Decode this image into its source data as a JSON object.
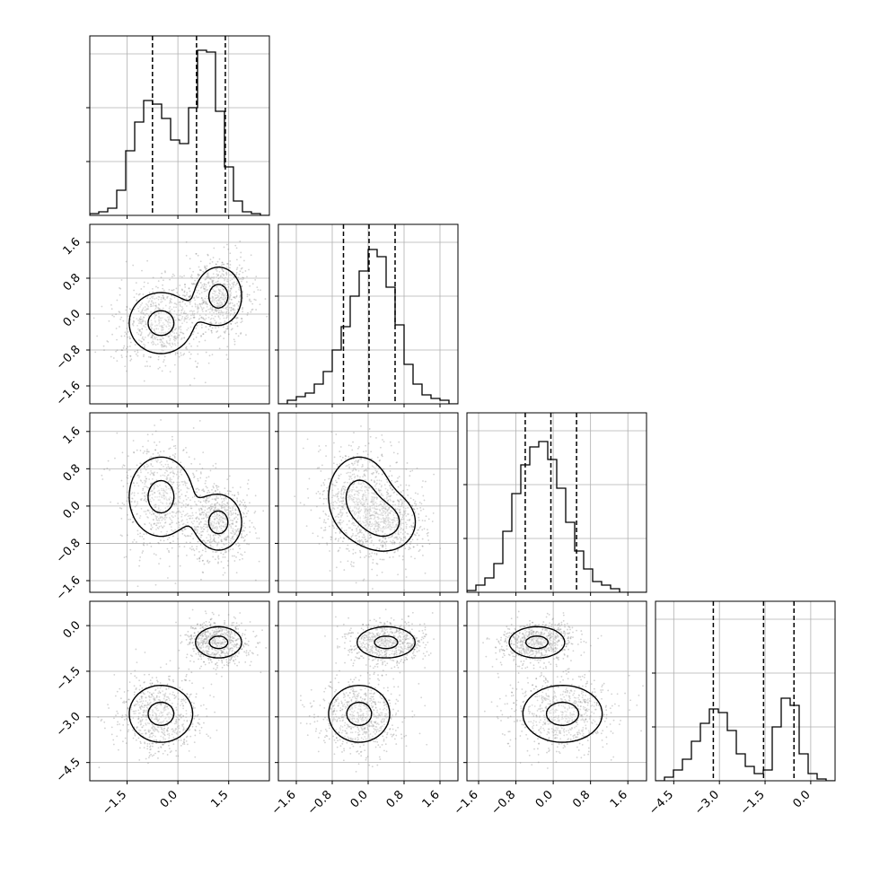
{
  "chart_data": {
    "type": "corner",
    "title": "",
    "grid": true,
    "variables": [
      {
        "name": "",
        "range": [
          -2.6,
          2.7
        ],
        "ticks": [
          -1.5,
          0.0,
          1.5
        ],
        "tick_labels": [
          "−1.5",
          "0.0",
          "1.5"
        ],
        "quantiles": [
          -0.75,
          0.55,
          1.4
        ]
      },
      {
        "name": "",
        "range": [
          -2.0,
          2.0
        ],
        "ticks": [
          -1.6,
          -0.8,
          0.0,
          0.8,
          1.6
        ],
        "tick_labels": [
          "−1.6",
          "−0.8",
          "0.0",
          "0.8",
          "1.6"
        ],
        "quantiles": [
          -0.55,
          0.02,
          0.6
        ]
      },
      {
        "name": "",
        "range": [
          -1.85,
          2.0
        ],
        "ticks": [
          -1.6,
          -0.8,
          0.0,
          0.8,
          1.6
        ],
        "tick_labels": [
          "−1.6",
          "−0.8",
          "0.0",
          "0.8",
          "1.6"
        ],
        "quantiles": [
          -0.6,
          -0.05,
          0.5
        ]
      },
      {
        "name": "",
        "range": [
          -5.1,
          0.8
        ],
        "ticks": [
          -4.5,
          -3.0,
          -1.5,
          0.0
        ],
        "tick_labels": [
          "−4.5",
          "−3.0",
          "−1.5",
          "0.0"
        ],
        "quantiles": [
          -3.2,
          -1.55,
          -0.55
        ]
      }
    ],
    "histograms": [
      [
        0.01,
        0.02,
        0.04,
        0.14,
        0.36,
        0.52,
        0.64,
        0.62,
        0.54,
        0.42,
        0.4,
        0.6,
        0.92,
        0.91,
        0.58,
        0.27,
        0.08,
        0.02,
        0.01,
        0.0
      ],
      [
        0.0,
        0.02,
        0.04,
        0.06,
        0.11,
        0.18,
        0.3,
        0.43,
        0.6,
        0.74,
        0.86,
        0.82,
        0.65,
        0.44,
        0.22,
        0.11,
        0.05,
        0.03,
        0.02,
        0.0
      ],
      [
        0.01,
        0.04,
        0.08,
        0.16,
        0.34,
        0.55,
        0.71,
        0.81,
        0.84,
        0.74,
        0.58,
        0.39,
        0.23,
        0.13,
        0.06,
        0.04,
        0.02,
        0.0,
        0.0,
        0.0
      ],
      [
        0.0,
        0.02,
        0.06,
        0.12,
        0.22,
        0.32,
        0.4,
        0.38,
        0.28,
        0.15,
        0.08,
        0.04,
        0.06,
        0.3,
        0.46,
        0.42,
        0.15,
        0.04,
        0.01,
        0.0
      ]
    ],
    "mixture_components": [
      {
        "weight": 0.5,
        "mean": [
          -0.5,
          -0.2,
          0.2,
          -2.9
        ],
        "sd": [
          0.55,
          0.4,
          0.5,
          0.55
        ]
      },
      {
        "weight": 0.5,
        "mean": [
          1.2,
          0.4,
          -0.35,
          -0.55
        ],
        "sd": [
          0.4,
          0.38,
          0.35,
          0.3
        ]
      }
    ],
    "contour_levels": [
      0.118,
      0.393,
      0.675,
      0.865
    ],
    "colors": {
      "line": "#000000",
      "grid": "#b0b0b0",
      "points": "#7f7f7f",
      "density": "#000000"
    }
  }
}
